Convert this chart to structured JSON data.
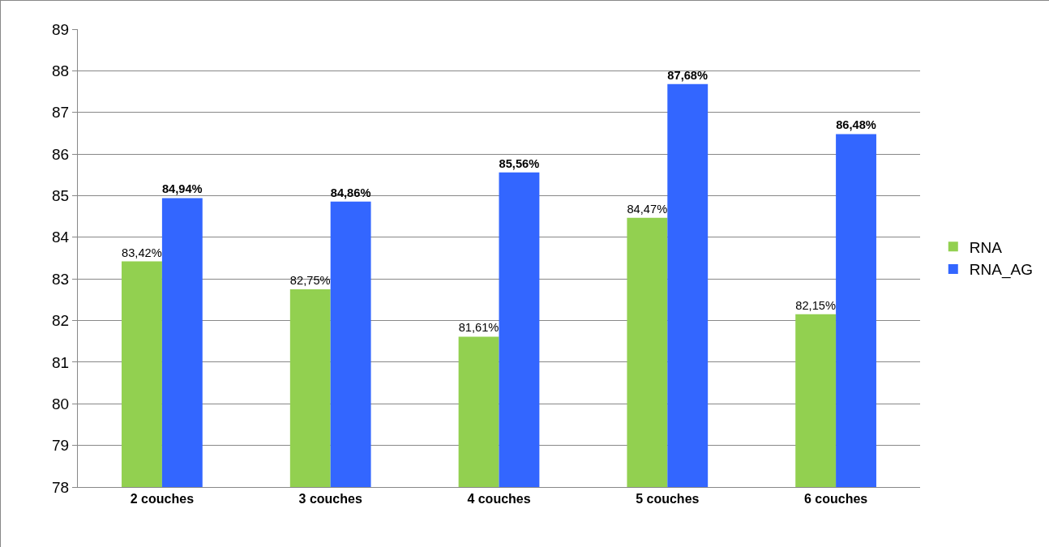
{
  "chart_data": {
    "type": "bar",
    "categories": [
      "2 couches",
      "3 couches",
      "4 couches",
      "5 couches",
      "6 couches"
    ],
    "series": [
      {
        "name": "RNA",
        "color": "#92d050",
        "values": [
          83.42,
          82.75,
          81.61,
          84.47,
          82.15
        ],
        "value_labels": [
          "83,42%",
          "82,75%",
          "81,61%",
          "84,47%",
          "82,15%"
        ]
      },
      {
        "name": "RNA_AG",
        "color": "#3366ff",
        "values": [
          84.94,
          84.86,
          85.56,
          87.68,
          86.48
        ],
        "value_labels": [
          "84,94%",
          "84,86%",
          "85,56%",
          "87,68%",
          "86,48%"
        ]
      }
    ],
    "ylim": [
      78,
      89
    ],
    "yticks": [
      78,
      79,
      80,
      81,
      82,
      83,
      84,
      85,
      86,
      87,
      88,
      89
    ],
    "grid": "y",
    "legend": "right"
  }
}
